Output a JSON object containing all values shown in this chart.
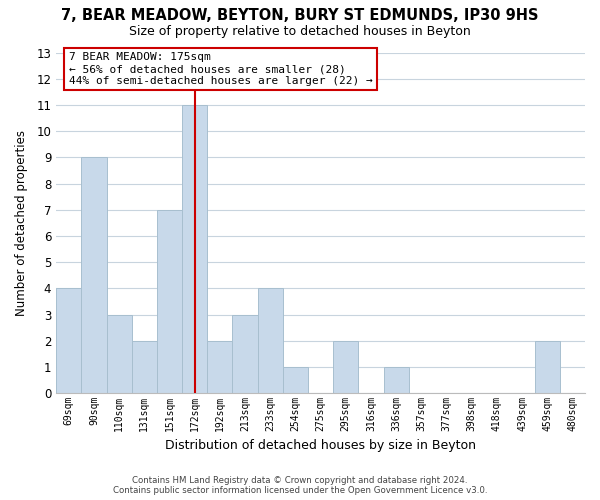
{
  "title": "7, BEAR MEADOW, BEYTON, BURY ST EDMUNDS, IP30 9HS",
  "subtitle": "Size of property relative to detached houses in Beyton",
  "xlabel": "Distribution of detached houses by size in Beyton",
  "ylabel": "Number of detached properties",
  "categories": [
    "69sqm",
    "90sqm",
    "110sqm",
    "131sqm",
    "151sqm",
    "172sqm",
    "192sqm",
    "213sqm",
    "233sqm",
    "254sqm",
    "275sqm",
    "295sqm",
    "316sqm",
    "336sqm",
    "357sqm",
    "377sqm",
    "398sqm",
    "418sqm",
    "439sqm",
    "459sqm",
    "480sqm"
  ],
  "values": [
    4,
    9,
    3,
    2,
    7,
    11,
    2,
    3,
    4,
    1,
    0,
    2,
    0,
    1,
    0,
    0,
    0,
    0,
    0,
    2,
    0
  ],
  "bar_color": "#c8d9ea",
  "bar_edge_color": "#a8bfcf",
  "highlight_index": 5,
  "highlight_line_color": "#cc0000",
  "ylim": [
    0,
    13
  ],
  "yticks": [
    0,
    1,
    2,
    3,
    4,
    5,
    6,
    7,
    8,
    9,
    10,
    11,
    12,
    13
  ],
  "annotation_line1": "7 BEAR MEADOW: 175sqm",
  "annotation_line2": "← 56% of detached houses are smaller (28)",
  "annotation_line3": "44% of semi-detached houses are larger (22) →",
  "annotation_box_color": "#ffffff",
  "annotation_box_edge": "#cc0000",
  "footer_line1": "Contains HM Land Registry data © Crown copyright and database right 2024.",
  "footer_line2": "Contains public sector information licensed under the Open Government Licence v3.0.",
  "background_color": "#ffffff",
  "grid_color": "#c8d4de",
  "title_fontsize": 10.5,
  "subtitle_fontsize": 9,
  "ylabel_fontsize": 8.5,
  "xlabel_fontsize": 9
}
